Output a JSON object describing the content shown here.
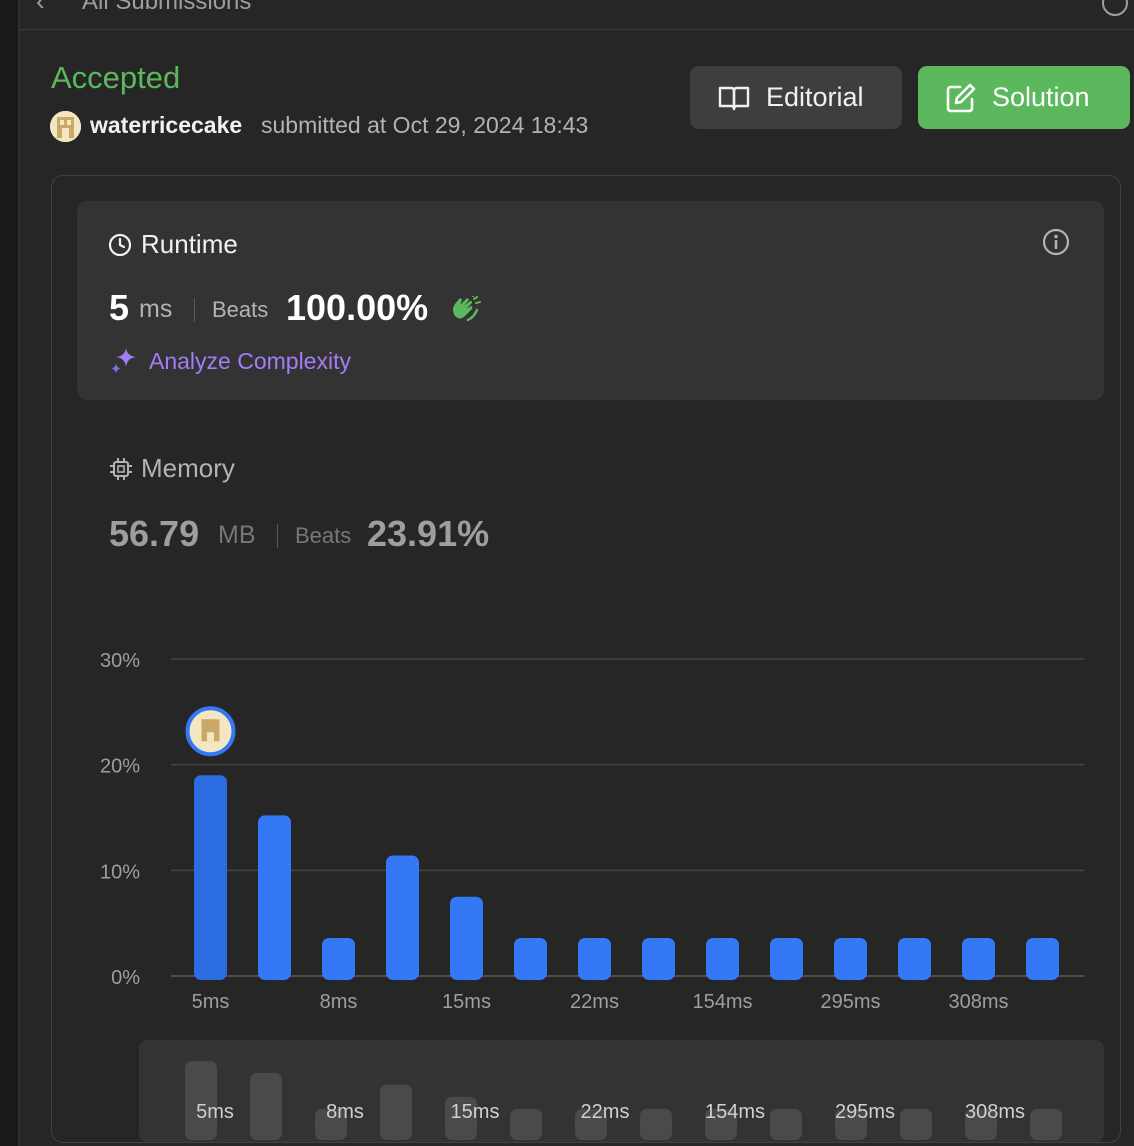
{
  "topbar": {
    "title": "All Submissions"
  },
  "submission": {
    "status": "Accepted",
    "username": "waterricecake",
    "submitted_text": "submitted at Oct 29, 2024 18:43"
  },
  "buttons": {
    "editorial": "Editorial",
    "solution": "Solution"
  },
  "runtime": {
    "label": "Runtime",
    "value": "5",
    "unit": "ms",
    "beats_label": "Beats",
    "beats": "100.00%",
    "analyze_label": "Analyze Complexity"
  },
  "memory": {
    "label": "Memory",
    "value": "56.79",
    "unit": "MB",
    "beats_label": "Beats",
    "beats": "23.91%"
  },
  "colors": {
    "accepted": "#5cb85c",
    "bar": "#3478f6",
    "bar_selected": "#2b6ce0",
    "analyze": "#a57cf5",
    "clap": "#5cb85c"
  },
  "chart_data": {
    "type": "bar",
    "y_ticks": [
      "30%",
      "20%",
      "10%",
      "0%"
    ],
    "y_tick_values": [
      30,
      20,
      10,
      0
    ],
    "ylim": [
      0,
      30
    ],
    "x_tick_labels": [
      "5ms",
      "8ms",
      "15ms",
      "22ms",
      "154ms",
      "295ms",
      "308ms"
    ],
    "values": [
      19,
      15.2,
      3.6,
      11.4,
      7.5,
      3.6,
      3.6,
      3.6,
      3.6,
      3.6,
      3.6,
      3.6,
      3.6,
      3.6
    ],
    "selected_index": 0,
    "grid": true
  },
  "minimap": {
    "tick_labels": [
      "5ms",
      "8ms",
      "15ms",
      "22ms",
      "154ms",
      "295ms",
      "308ms"
    ]
  }
}
